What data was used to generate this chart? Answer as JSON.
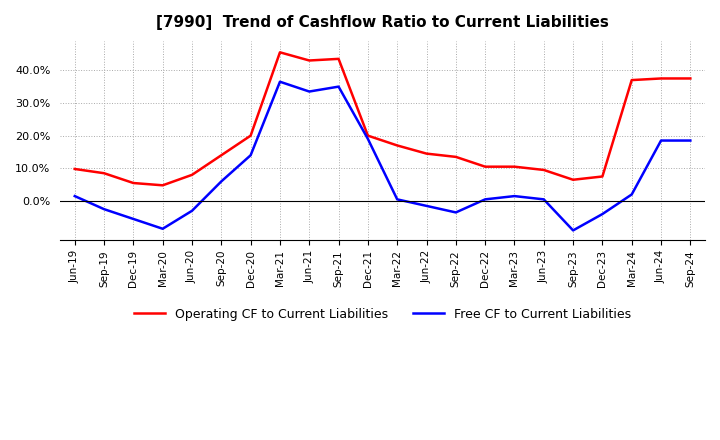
{
  "title": "[7990]  Trend of Cashflow Ratio to Current Liabilities",
  "x_labels": [
    "Jun-19",
    "Sep-19",
    "Dec-19",
    "Mar-20",
    "Jun-20",
    "Sep-20",
    "Dec-20",
    "Mar-21",
    "Jun-21",
    "Sep-21",
    "Dec-21",
    "Mar-22",
    "Jun-22",
    "Sep-22",
    "Dec-22",
    "Mar-23",
    "Jun-23",
    "Sep-23",
    "Dec-23",
    "Mar-24",
    "Jun-24",
    "Sep-24"
  ],
  "operating_cf": [
    9.8,
    8.5,
    5.5,
    4.8,
    8.0,
    14.0,
    20.0,
    45.5,
    43.0,
    43.5,
    20.0,
    17.0,
    14.5,
    13.5,
    10.5,
    10.5,
    9.5,
    6.5,
    7.5,
    37.0,
    37.5,
    37.5
  ],
  "free_cf": [
    1.5,
    -2.5,
    -5.5,
    -8.5,
    -3.0,
    6.0,
    14.0,
    36.5,
    33.5,
    35.0,
    19.0,
    0.5,
    -1.5,
    -3.5,
    0.5,
    1.5,
    0.5,
    -9.0,
    -4.0,
    2.0,
    18.5,
    18.5
  ],
  "operating_color": "#FF0000",
  "free_color": "#0000FF",
  "ylim": [
    -12,
    49
  ],
  "yticks": [
    0,
    10,
    20,
    30,
    40
  ],
  "grid_color": "#AAAAAA",
  "bg_color": "#FFFFFF",
  "plot_bg_color": "#FFFFFF",
  "legend_labels": [
    "Operating CF to Current Liabilities",
    "Free CF to Current Liabilities"
  ]
}
